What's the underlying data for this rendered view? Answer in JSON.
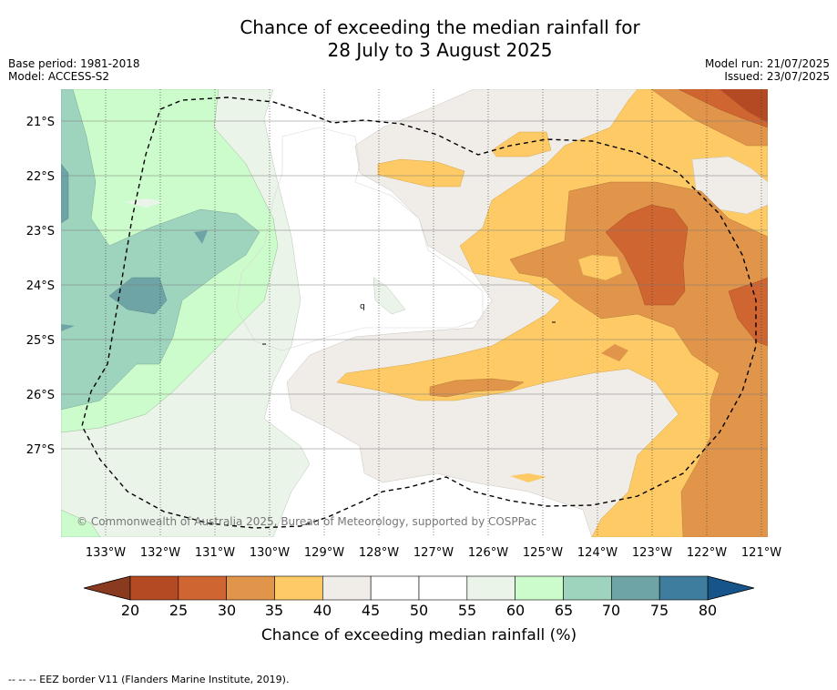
{
  "header": {
    "title_line1": "Chance of exceeding the median rainfall for",
    "title_line2": "28 July to 3 August 2025",
    "base_period": "Base period: 1981-2018",
    "model": "Model: ACCESS-S2",
    "model_run": "Model run: 21/07/2025",
    "issued": "Issued: 23/07/2025"
  },
  "map": {
    "lat_labels": [
      "21°S",
      "22°S",
      "23°S",
      "24°S",
      "25°S",
      "26°S",
      "27°S"
    ],
    "lon_labels": [
      "133°W",
      "132°W",
      "131°W",
      "130°W",
      "129°W",
      "128°W",
      "127°W",
      "126°W",
      "125°W",
      "124°W",
      "123°W",
      "122°W",
      "121°W"
    ],
    "copyright": "© Commonwealth of Australia 2025, Bureau of Meteorology, supported by COSPPac",
    "stray_marker": "q"
  },
  "colorbar": {
    "ticks": [
      "20",
      "25",
      "30",
      "35",
      "40",
      "45",
      "50",
      "55",
      "60",
      "65",
      "70",
      "75",
      "80"
    ],
    "colors": [
      "#8a3a1e",
      "#b34a23",
      "#cf6530",
      "#e0954a",
      "#fdca66",
      "#f0ede8",
      "#ffffff",
      "#ffffff",
      "#eaf4e9",
      "#ccfccb",
      "#9ed3bd",
      "#6ea4a5",
      "#3f7d9f",
      "#17548a"
    ],
    "label": "Chance of exceeding median rainfall (%)"
  },
  "footer": {
    "legend_text": "--  --  -- EEZ border V11 (Flanders Marine Institute, 2019)."
  }
}
